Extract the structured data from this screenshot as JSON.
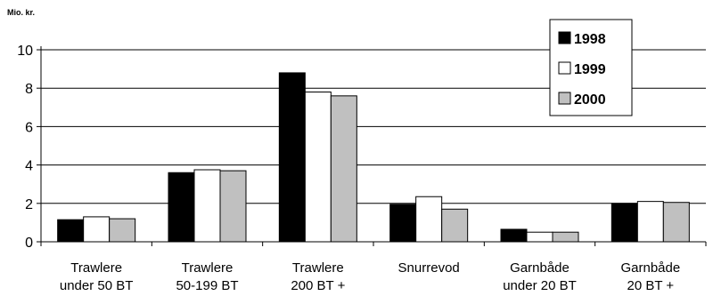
{
  "chart_data": {
    "type": "bar",
    "unit_label": "Mio. kr.",
    "categories": [
      [
        "Trawlere",
        "under 50 BT"
      ],
      [
        "Trawlere",
        "50-199 BT"
      ],
      [
        "Trawlere",
        "200 BT +"
      ],
      [
        "Snurrevod"
      ],
      [
        "Garnbåde",
        "under 20 BT"
      ],
      [
        "Garnbåde",
        "20 BT +"
      ]
    ],
    "series": [
      {
        "name": "1998",
        "color": "#000000",
        "values": [
          1.15,
          3.6,
          8.8,
          1.95,
          0.65,
          2.0
        ]
      },
      {
        "name": "1999",
        "color": "#ffffff",
        "values": [
          1.3,
          3.75,
          7.8,
          2.35,
          0.5,
          2.1
        ]
      },
      {
        "name": "2000",
        "color": "#c0c0c0",
        "values": [
          1.2,
          3.7,
          7.6,
          1.7,
          0.5,
          2.05
        ]
      }
    ],
    "ylim": [
      0,
      10
    ],
    "yticks": [
      "0",
      "2",
      "4",
      "6",
      "8",
      "10"
    ],
    "grid": true,
    "legend_position": "top-right"
  }
}
